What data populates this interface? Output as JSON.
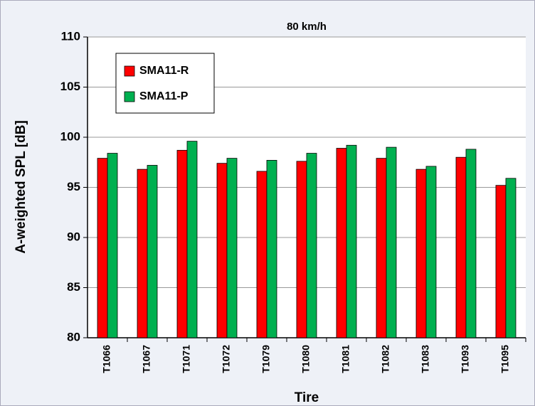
{
  "chart_data": {
    "type": "bar",
    "title": "80 km/h",
    "x_label": "Tire",
    "y_label": "A-weighted SPL [dB]",
    "categories": [
      "T1066",
      "T1067",
      "T1071",
      "T1072",
      "T1079",
      "T1080",
      "T1081",
      "T1082",
      "T1083",
      "T1093",
      "T1095"
    ],
    "series": [
      {
        "name": "SMA11-R",
        "color": "#ff0000",
        "values": [
          97.9,
          96.8,
          98.7,
          97.4,
          96.6,
          97.6,
          98.9,
          97.9,
          96.8,
          98.0,
          95.2
        ]
      },
      {
        "name": "SMA11-P",
        "color": "#00b050",
        "values": [
          98.4,
          97.2,
          99.6,
          97.9,
          97.7,
          98.4,
          99.2,
          99.0,
          97.1,
          98.8,
          95.9
        ]
      }
    ],
    "ylim": [
      80,
      110
    ],
    "yticks": [
      80,
      85,
      90,
      95,
      100,
      105,
      110
    ],
    "grid": true,
    "legend": "upper left"
  }
}
